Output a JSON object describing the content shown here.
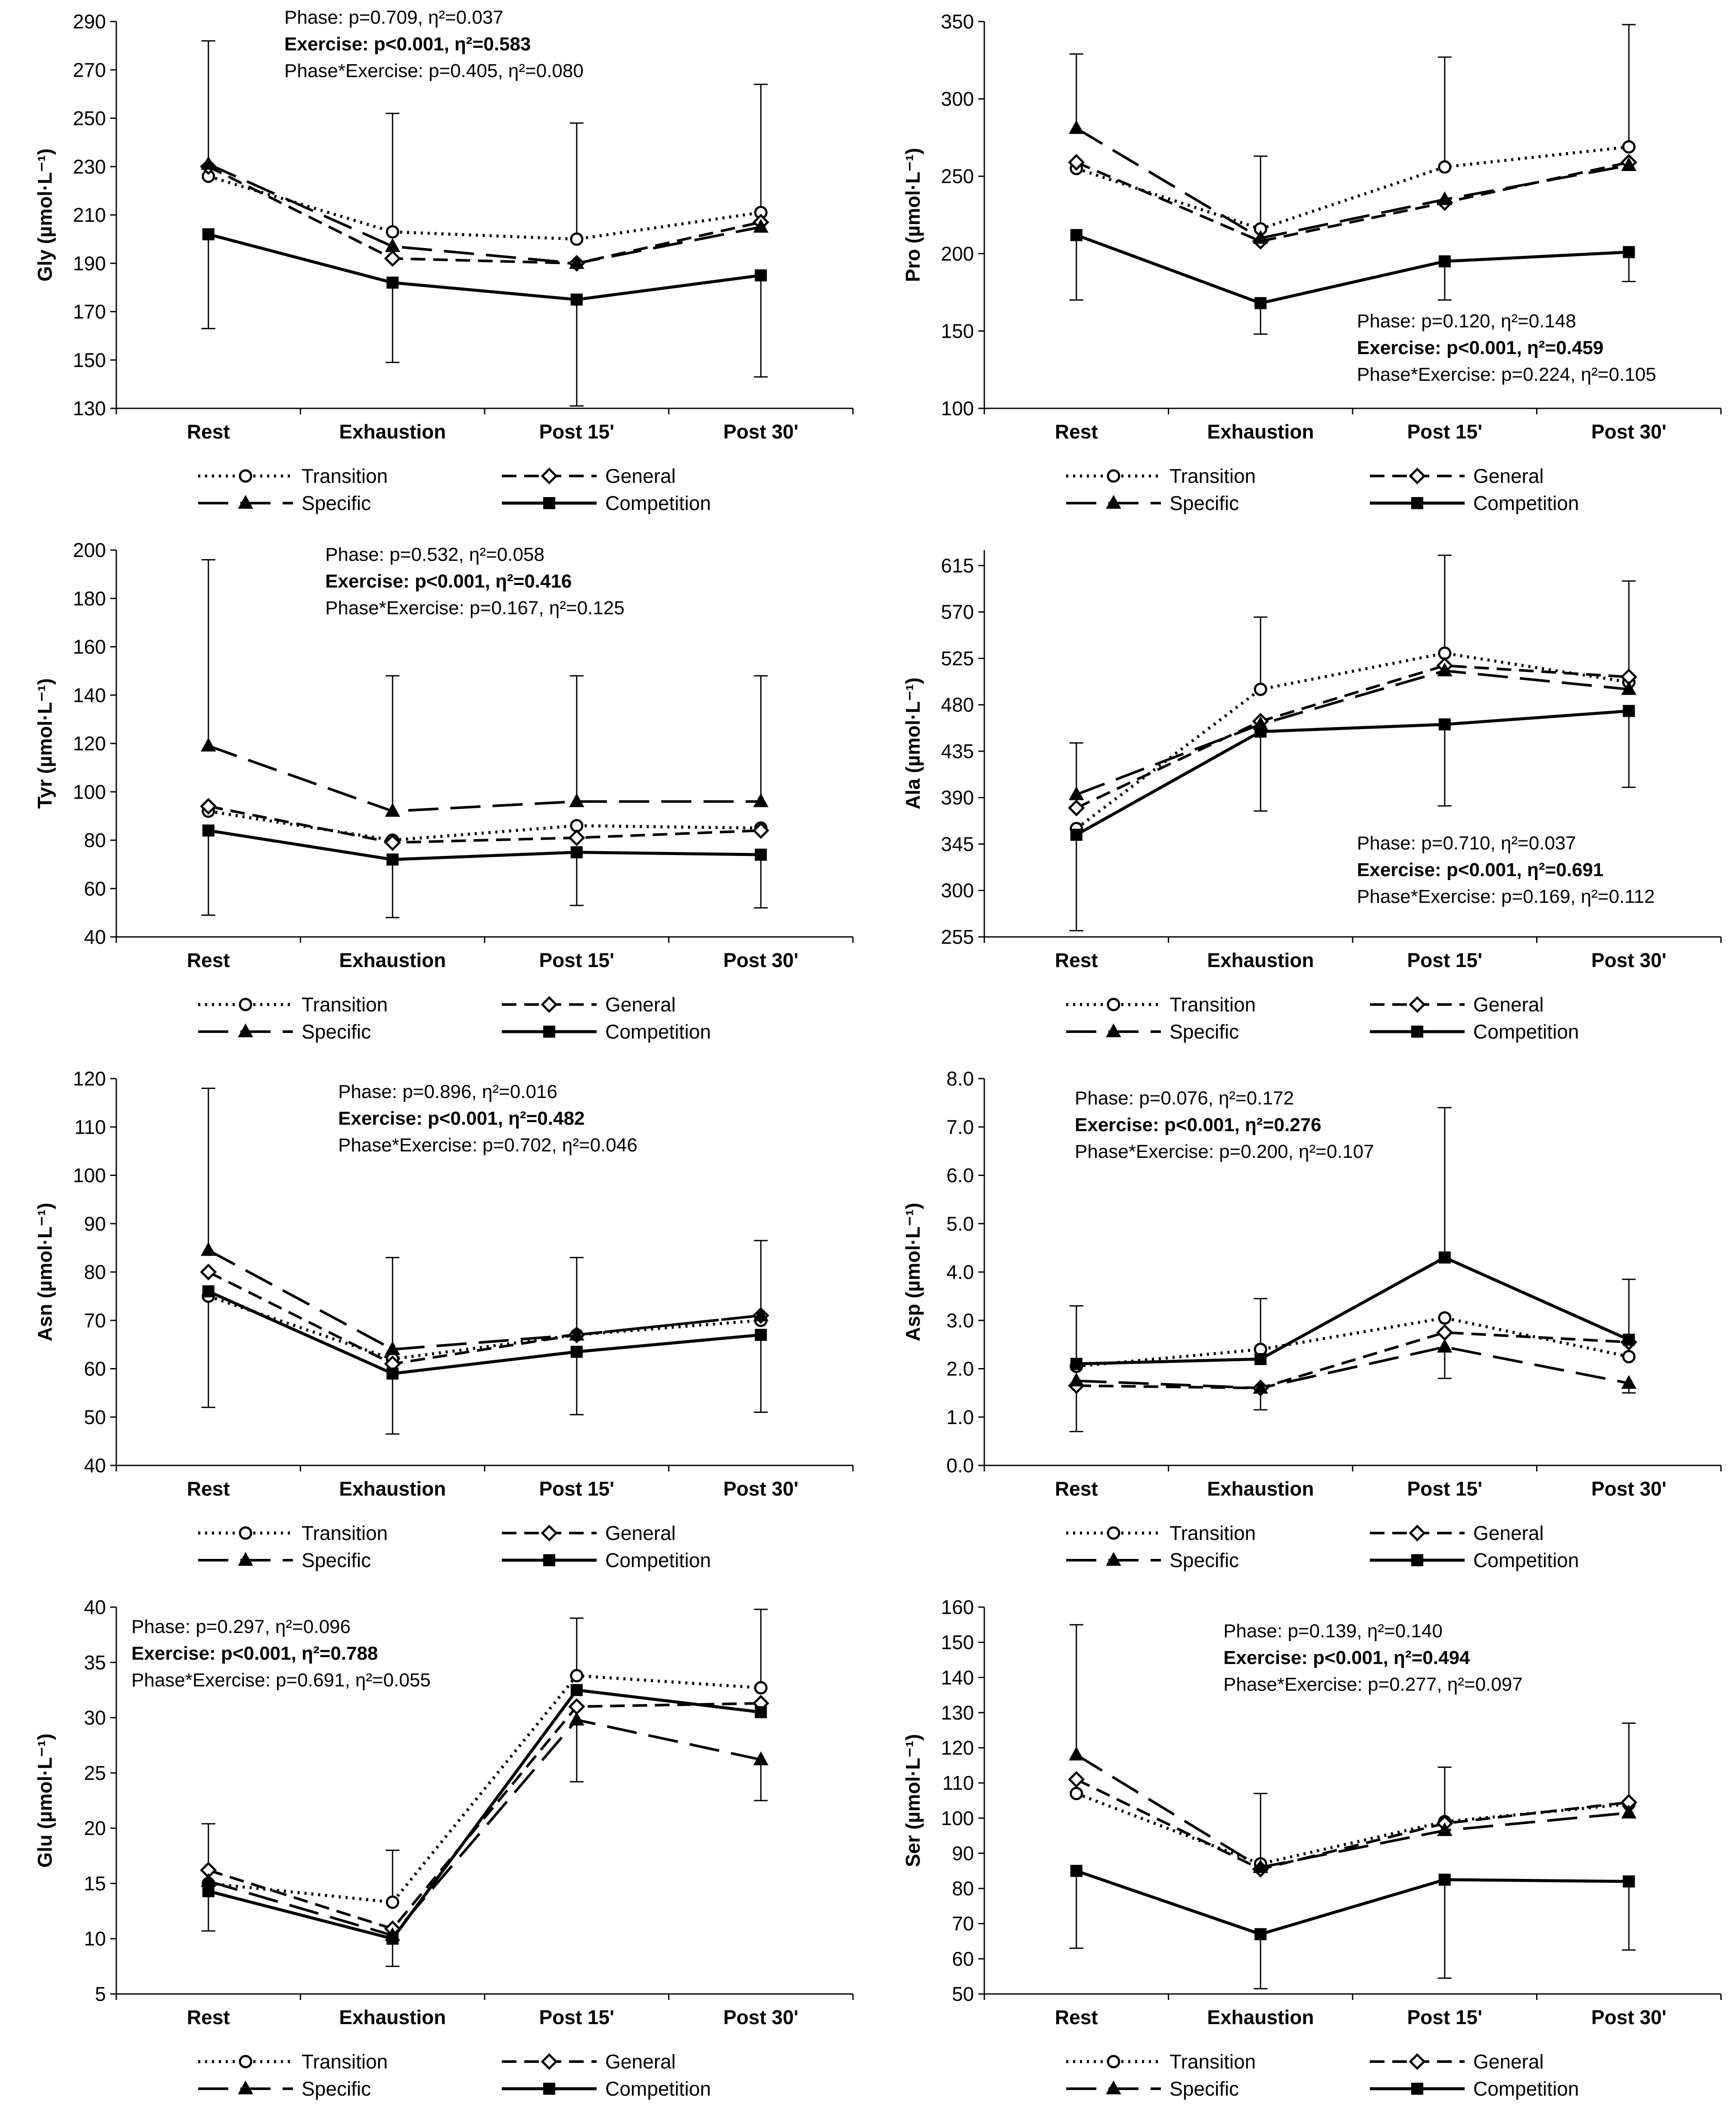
{
  "figure": {
    "categories": [
      "Rest",
      "Exhaustion",
      "Post 15'",
      "Post 30'"
    ],
    "legend": {
      "transition": "Transition",
      "general": "General",
      "specific": "Specific",
      "competition": "Competition"
    }
  },
  "chart_data": [
    {
      "type": "line",
      "id": "gly",
      "ylabel": "Gly (µmol·L⁻¹)",
      "ylim": [
        130,
        290
      ],
      "yticks": [
        130,
        150,
        170,
        190,
        210,
        230,
        250,
        270,
        290
      ],
      "decimals": 0,
      "categories": [
        "Rest",
        "Exhaustion",
        "Post 15'",
        "Post 30'"
      ],
      "stats": {
        "phase": "Phase: p=0.709, η²=0.037",
        "exercise": "Exercise: p<0.001, η²=0.583",
        "interaction": "Phase*Exercise: p=0.405, η²=0.080",
        "position": "top-center"
      },
      "series": [
        {
          "name": "Transition",
          "values": [
            226,
            203,
            200,
            211
          ]
        },
        {
          "name": "General",
          "values": [
            230,
            192,
            190,
            207
          ]
        },
        {
          "name": "Specific",
          "values": [
            231,
            197,
            190,
            205
          ]
        },
        {
          "name": "Competition",
          "values": [
            202,
            182,
            175,
            185
          ]
        }
      ],
      "error_bars": [
        {
          "series": "Specific",
          "index": 0,
          "upper": 282
        },
        {
          "series": "Competition",
          "index": 0,
          "lower": 163
        },
        {
          "series": "Transition",
          "index": 1,
          "upper": 252
        },
        {
          "series": "Competition",
          "index": 1,
          "lower": 149
        },
        {
          "series": "Transition",
          "index": 2,
          "upper": 248
        },
        {
          "series": "Competition",
          "index": 2,
          "lower": 131
        },
        {
          "series": "Transition",
          "index": 3,
          "upper": 264
        },
        {
          "series": "Competition",
          "index": 3,
          "lower": 143
        }
      ]
    },
    {
      "type": "line",
      "id": "pro",
      "ylabel": "Pro (µmol·L⁻¹)",
      "ylim": [
        100,
        350
      ],
      "yticks": [
        100,
        150,
        200,
        250,
        300,
        350
      ],
      "decimals": 0,
      "categories": [
        "Rest",
        "Exhaustion",
        "Post 15'",
        "Post 30'"
      ],
      "stats": {
        "phase": "Phase: p=0.120, η²=0.148",
        "exercise": "Exercise: p<0.001, η²=0.459",
        "interaction": "Phase*Exercise: p=0.224, η²=0.105",
        "position": "bottom-right"
      },
      "series": [
        {
          "name": "Transition",
          "values": [
            255,
            216,
            256,
            269
          ]
        },
        {
          "name": "General",
          "values": [
            259,
            208,
            233,
            259
          ]
        },
        {
          "name": "Specific",
          "values": [
            281,
            210,
            235,
            257
          ]
        },
        {
          "name": "Competition",
          "values": [
            212,
            168,
            195,
            201
          ]
        }
      ],
      "error_bars": [
        {
          "series": "Specific",
          "index": 0,
          "upper": 329
        },
        {
          "series": "Competition",
          "index": 0,
          "lower": 170
        },
        {
          "series": "Transition",
          "index": 1,
          "upper": 263
        },
        {
          "series": "Competition",
          "index": 1,
          "lower": 148
        },
        {
          "series": "Transition",
          "index": 2,
          "upper": 327
        },
        {
          "series": "Competition",
          "index": 2,
          "lower": 170
        },
        {
          "series": "Transition",
          "index": 3,
          "upper": 348
        },
        {
          "series": "Competition",
          "index": 3,
          "lower": 182
        }
      ]
    },
    {
      "type": "line",
      "id": "tyr",
      "ylabel": "Tyr (µmol·L⁻¹)",
      "ylim": [
        40,
        200
      ],
      "yticks": [
        40,
        60,
        80,
        100,
        120,
        140,
        160,
        180,
        200
      ],
      "decimals": 0,
      "categories": [
        "Rest",
        "Exhaustion",
        "Post 15'",
        "Post 30'"
      ],
      "stats": {
        "phase": "Phase: p=0.532, η²=0.058",
        "exercise": "Exercise: p<0.001, η²=0.416",
        "interaction": "Phase*Exercise: p=0.167, η²=0.125",
        "position": "top-center"
      },
      "series": [
        {
          "name": "Transition",
          "values": [
            92,
            80,
            86,
            85
          ]
        },
        {
          "name": "General",
          "values": [
            94,
            79,
            81,
            84
          ]
        },
        {
          "name": "Specific",
          "values": [
            119,
            92,
            96,
            96
          ]
        },
        {
          "name": "Competition",
          "values": [
            84,
            72,
            75,
            74
          ]
        }
      ],
      "error_bars": [
        {
          "series": "Specific",
          "index": 0,
          "upper": 196
        },
        {
          "series": "Competition",
          "index": 0,
          "lower": 49
        },
        {
          "series": "Specific",
          "index": 1,
          "upper": 148
        },
        {
          "series": "Competition",
          "index": 1,
          "lower": 48
        },
        {
          "series": "Specific",
          "index": 2,
          "upper": 148
        },
        {
          "series": "Competition",
          "index": 2,
          "lower": 53
        },
        {
          "series": "Specific",
          "index": 3,
          "upper": 148
        },
        {
          "series": "Competition",
          "index": 3,
          "lower": 52
        }
      ]
    },
    {
      "type": "line",
      "id": "ala",
      "ylabel": "Ala (µmol·L⁻¹)",
      "ylim": [
        255,
        630
      ],
      "yticks": [
        255,
        300,
        345,
        390,
        435,
        480,
        525,
        570,
        615
      ],
      "decimals": 0,
      "categories": [
        "Rest",
        "Exhaustion",
        "Post 15'",
        "Post 30'"
      ],
      "stats": {
        "phase": "Phase: p=0.710, η²=0.037",
        "exercise": "Exercise: p<0.001, η²=0.691",
        "interaction": "Phase*Exercise: p=0.169, η²=0.112",
        "position": "bottom-right"
      },
      "series": [
        {
          "name": "Transition",
          "values": [
            360,
            495,
            530,
            502
          ]
        },
        {
          "name": "General",
          "values": [
            380,
            464,
            518,
            507
          ]
        },
        {
          "name": "Specific",
          "values": [
            393,
            461,
            513,
            495
          ]
        },
        {
          "name": "Competition",
          "values": [
            354,
            454,
            461,
            474
          ]
        }
      ],
      "error_bars": [
        {
          "series": "Specific",
          "index": 0,
          "upper": 443
        },
        {
          "series": "Competition",
          "index": 0,
          "lower": 261
        },
        {
          "series": "Transition",
          "index": 1,
          "upper": 565
        },
        {
          "series": "Competition",
          "index": 1,
          "lower": 377
        },
        {
          "series": "Transition",
          "index": 2,
          "upper": 625
        },
        {
          "series": "Competition",
          "index": 2,
          "lower": 382
        },
        {
          "series": "Transition",
          "index": 3,
          "upper": 600
        },
        {
          "series": "Competition",
          "index": 3,
          "lower": 400
        }
      ]
    },
    {
      "type": "line",
      "id": "asn",
      "ylabel": "Asn (µmol·L⁻¹)",
      "ylim": [
        40,
        120
      ],
      "yticks": [
        40,
        50,
        60,
        70,
        80,
        90,
        100,
        110,
        120
      ],
      "decimals": 0,
      "categories": [
        "Rest",
        "Exhaustion",
        "Post 15'",
        "Post 30'"
      ],
      "stats": {
        "phase": "Phase: p=0.896, η²=0.016",
        "exercise": "Exercise: p<0.001, η²=0.482",
        "interaction": "Phase*Exercise: p=0.702, η²=0.046",
        "position": "top-center"
      },
      "series": [
        {
          "name": "Transition",
          "values": [
            75,
            62,
            67,
            70
          ]
        },
        {
          "name": "General",
          "values": [
            80,
            61,
            67,
            71
          ]
        },
        {
          "name": "Specific",
          "values": [
            84.5,
            64,
            67,
            71
          ]
        },
        {
          "name": "Competition",
          "values": [
            76,
            59,
            63.5,
            67
          ]
        }
      ],
      "error_bars": [
        {
          "series": "Specific",
          "index": 0,
          "upper": 118
        },
        {
          "series": "Competition",
          "index": 0,
          "lower": 52
        },
        {
          "series": "Specific",
          "index": 1,
          "upper": 83
        },
        {
          "series": "Competition",
          "index": 1,
          "lower": 46.5
        },
        {
          "series": "Specific",
          "index": 2,
          "upper": 83
        },
        {
          "series": "Competition",
          "index": 2,
          "lower": 50.5
        },
        {
          "series": "Specific",
          "index": 3,
          "upper": 86.5
        },
        {
          "series": "Competition",
          "index": 3,
          "lower": 51
        }
      ]
    },
    {
      "type": "line",
      "id": "asp",
      "ylabel": "Asp (µmol·L⁻¹)",
      "ylim": [
        0,
        8
      ],
      "yticks": [
        0,
        1,
        2,
        3,
        4,
        5,
        6,
        7,
        8
      ],
      "decimals": 1,
      "categories": [
        "Rest",
        "Exhaustion",
        "Post 15'",
        "Post 30'"
      ],
      "stats": {
        "phase": "Phase: p=0.076, η²=0.172",
        "exercise": "Exercise: p<0.001, η²=0.276",
        "interaction": "Phase*Exercise: p=0.200, η²=0.107",
        "position": "top-left"
      },
      "series": [
        {
          "name": "Transition",
          "values": [
            2.05,
            2.4,
            3.05,
            2.25
          ]
        },
        {
          "name": "General",
          "values": [
            1.65,
            1.6,
            2.75,
            2.55
          ]
        },
        {
          "name": "Specific",
          "values": [
            1.75,
            1.6,
            2.45,
            1.7
          ]
        },
        {
          "name": "Competition",
          "values": [
            2.1,
            2.2,
            4.3,
            2.6
          ]
        }
      ],
      "error_bars": [
        {
          "series": "Competition",
          "index": 0,
          "upper": 3.3
        },
        {
          "series": "General",
          "index": 0,
          "lower": 0.7
        },
        {
          "series": "Transition",
          "index": 1,
          "upper": 3.45
        },
        {
          "series": "Specific",
          "index": 1,
          "lower": 1.15
        },
        {
          "series": "Competition",
          "index": 2,
          "upper": 7.4
        },
        {
          "series": "Specific",
          "index": 2,
          "lower": 1.8
        },
        {
          "series": "Competition",
          "index": 3,
          "upper": 3.85
        },
        {
          "series": "Specific",
          "index": 3,
          "lower": 1.5
        }
      ]
    },
    {
      "type": "line",
      "id": "glu",
      "ylabel": "Glu (µmol·L⁻¹)",
      "ylim": [
        5,
        40
      ],
      "yticks": [
        5,
        10,
        15,
        20,
        25,
        30,
        35,
        40
      ],
      "decimals": 0,
      "categories": [
        "Rest",
        "Exhaustion",
        "Post 15'",
        "Post 30'"
      ],
      "stats": {
        "phase": "Phase: p=0.297, η²=0.096",
        "exercise": "Exercise: p<0.001, η²=0.788",
        "interaction": "Phase*Exercise: p=0.691, η²=0.055",
        "position": "top-left"
      },
      "series": [
        {
          "name": "Transition",
          "values": [
            15,
            13.3,
            33.8,
            32.7
          ]
        },
        {
          "name": "General",
          "values": [
            16.2,
            10.9,
            31,
            31.3
          ]
        },
        {
          "name": "Specific",
          "values": [
            15.2,
            10.3,
            29.8,
            26.2
          ]
        },
        {
          "name": "Competition",
          "values": [
            14.3,
            10,
            32.5,
            30.5
          ]
        }
      ],
      "error_bars": [
        {
          "series": "General",
          "index": 0,
          "upper": 20.4
        },
        {
          "series": "Competition",
          "index": 0,
          "lower": 10.7
        },
        {
          "series": "Transition",
          "index": 1,
          "upper": 18
        },
        {
          "series": "Competition",
          "index": 1,
          "lower": 7.5
        },
        {
          "series": "Transition",
          "index": 2,
          "upper": 39
        },
        {
          "series": "Specific",
          "index": 2,
          "lower": 24.2
        },
        {
          "series": "Transition",
          "index": 3,
          "upper": 39.8
        },
        {
          "series": "Specific",
          "index": 3,
          "lower": 22.5
        }
      ]
    },
    {
      "type": "line",
      "id": "ser",
      "ylabel": "Ser (µmol·L⁻¹)",
      "ylim": [
        50,
        160
      ],
      "yticks": [
        50,
        60,
        70,
        80,
        90,
        100,
        110,
        120,
        130,
        140,
        150,
        160
      ],
      "decimals": 0,
      "categories": [
        "Rest",
        "Exhaustion",
        "Post 15'",
        "Post 30'"
      ],
      "stats": {
        "phase": "Phase: p=0.139, η²=0.140",
        "exercise": "Exercise: p<0.001, η²=0.494",
        "interaction": "Phase*Exercise: p=0.277, η²=0.097",
        "position": "top-center"
      },
      "series": [
        {
          "name": "Transition",
          "values": [
            107,
            87,
            99,
            104
          ]
        },
        {
          "name": "General",
          "values": [
            111,
            85.5,
            98.5,
            104.5
          ]
        },
        {
          "name": "Specific",
          "values": [
            118,
            86,
            96.5,
            101.5
          ]
        },
        {
          "name": "Competition",
          "values": [
            85,
            67,
            82.5,
            82
          ]
        }
      ],
      "error_bars": [
        {
          "series": "Specific",
          "index": 0,
          "upper": 155
        },
        {
          "series": "Competition",
          "index": 0,
          "lower": 63
        },
        {
          "series": "Transition",
          "index": 1,
          "upper": 107
        },
        {
          "series": "Competition",
          "index": 1,
          "lower": 51.5
        },
        {
          "series": "Transition",
          "index": 2,
          "upper": 114.5
        },
        {
          "series": "Competition",
          "index": 2,
          "lower": 54.5
        },
        {
          "series": "Transition",
          "index": 3,
          "upper": 127
        },
        {
          "series": "Competition",
          "index": 3,
          "lower": 62.5
        }
      ]
    }
  ]
}
